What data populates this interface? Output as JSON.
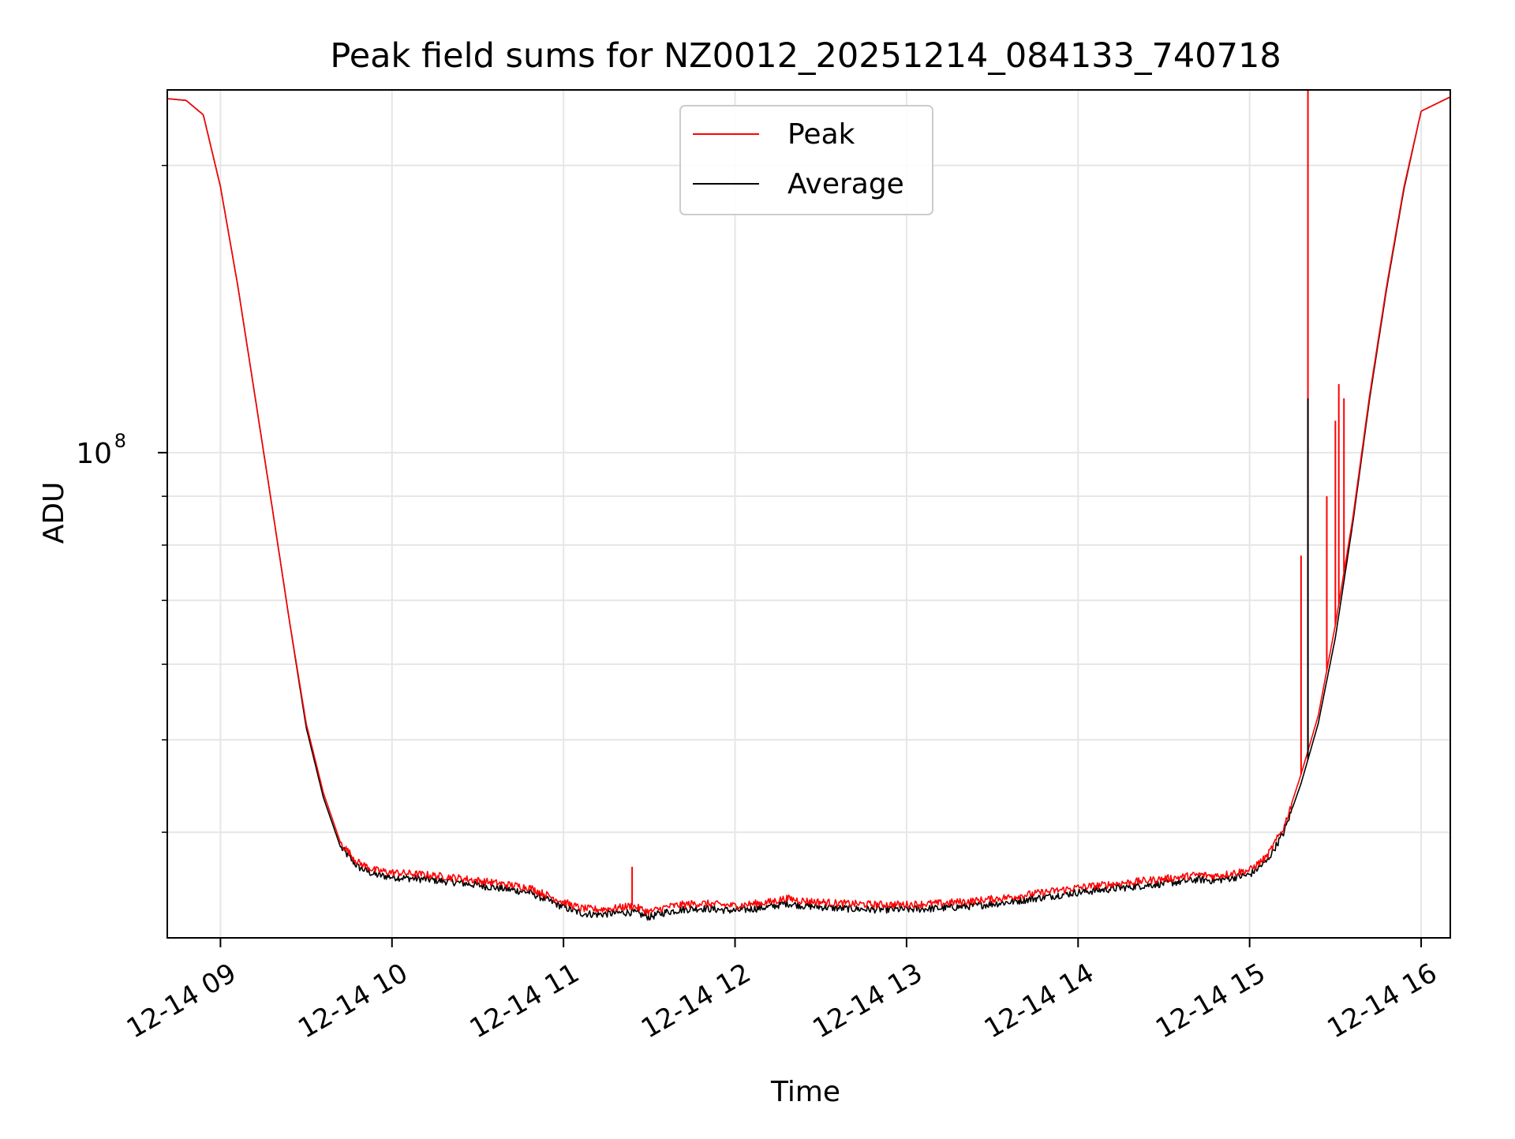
{
  "chart_data": {
    "type": "line",
    "title": "Peak field sums for NZ0012_20251214_084133_740718",
    "xlabel": "Time",
    "ylabel": "ADU",
    "yscale": "log",
    "xlim": [
      8.69,
      16.17
    ],
    "ylim": [
      31000000,
      240000000
    ],
    "grid": true,
    "x_units": "hours (2025-12-14)",
    "xticks": [
      {
        "value": 9,
        "label": "12-14 09"
      },
      {
        "value": 10,
        "label": "12-14 10"
      },
      {
        "value": 11,
        "label": "12-14 11"
      },
      {
        "value": 12,
        "label": "12-14 12"
      },
      {
        "value": 13,
        "label": "12-14 13"
      },
      {
        "value": 14,
        "label": "12-14 14"
      },
      {
        "value": 15,
        "label": "12-14 15"
      },
      {
        "value": 16,
        "label": "12-14 16"
      }
    ],
    "yticks_major": [
      {
        "value": 100000000,
        "label_base": "10",
        "label_exp": "8"
      }
    ],
    "yticks_minor": [
      40000000,
      50000000,
      60000000,
      70000000,
      80000000,
      90000000,
      200000000
    ],
    "legend": {
      "placement": "upper center",
      "entries": [
        "Peak",
        "Average"
      ]
    },
    "series": [
      {
        "name": "Peak",
        "color": "#ff0000",
        "x": [
          8.69,
          8.8,
          8.9,
          9.0,
          9.1,
          9.2,
          9.3,
          9.4,
          9.5,
          9.6,
          9.7,
          9.8,
          9.9,
          10.0,
          10.2,
          10.4,
          10.6,
          10.8,
          11.0,
          11.1,
          11.2,
          11.3,
          11.4,
          11.5,
          11.6,
          11.7,
          11.8,
          12.0,
          12.2,
          12.3,
          12.4,
          12.6,
          12.8,
          13.0,
          13.2,
          13.4,
          13.6,
          13.8,
          14.0,
          14.2,
          14.4,
          14.6,
          14.7,
          14.8,
          15.0,
          15.1,
          15.2,
          15.3,
          15.4,
          15.5,
          15.6,
          15.7,
          15.8,
          15.9,
          16.0,
          16.17
        ],
        "y": [
          235000000,
          234000000,
          226000000,
          190000000,
          150000000,
          115000000,
          88000000,
          67000000,
          52000000,
          44000000,
          39000000,
          37200000,
          36500000,
          36300000,
          36100000,
          35800000,
          35400000,
          35000000,
          33800000,
          33300000,
          33200000,
          33300000,
          33500000,
          33000000,
          33400000,
          33600000,
          33700000,
          33500000,
          33800000,
          34100000,
          33900000,
          33700000,
          33600000,
          33600000,
          33700000,
          33900000,
          34200000,
          34600000,
          35000000,
          35300000,
          35600000,
          35900000,
          36100000,
          36000000,
          36500000,
          37700000,
          40500000,
          46000000,
          53000000,
          66000000,
          85000000,
          115000000,
          150000000,
          190000000,
          228000000,
          236000000
        ]
      },
      {
        "name": "Average",
        "color": "#000000",
        "x": [
          8.69,
          8.8,
          8.9,
          9.0,
          9.1,
          9.2,
          9.3,
          9.4,
          9.5,
          9.6,
          9.7,
          9.8,
          9.9,
          10.0,
          10.2,
          10.4,
          10.6,
          10.8,
          11.0,
          11.1,
          11.2,
          11.3,
          11.4,
          11.5,
          11.6,
          11.7,
          11.8,
          12.0,
          12.2,
          12.3,
          12.4,
          12.6,
          12.8,
          13.0,
          13.2,
          13.4,
          13.6,
          13.8,
          14.0,
          14.2,
          14.4,
          14.6,
          14.7,
          14.8,
          15.0,
          15.1,
          15.2,
          15.3,
          15.4,
          15.5,
          15.6,
          15.7,
          15.8,
          15.9,
          16.0,
          16.17
        ],
        "y": [
          235000000,
          234000000,
          226000000,
          190000000,
          150000000,
          115000000,
          88000000,
          67000000,
          51500000,
          43500000,
          38600000,
          36800000,
          36100000,
          35900000,
          35700000,
          35400000,
          35000000,
          34600000,
          33400000,
          32900000,
          32800000,
          32900000,
          33000000,
          32600000,
          33000000,
          33200000,
          33300000,
          33100000,
          33400000,
          33700000,
          33500000,
          33300000,
          33200000,
          33200000,
          33300000,
          33500000,
          33800000,
          34200000,
          34600000,
          34900000,
          35200000,
          35500000,
          35700000,
          35600000,
          36100000,
          37300000,
          40000000,
          45000000,
          52000000,
          64000000,
          84000000,
          114000000,
          149000000,
          189000000,
          228000000,
          236000000
        ]
      }
    ],
    "spikes": [
      {
        "series": "Peak",
        "x": 11.4,
        "y": 36800000
      },
      {
        "series": "Peak",
        "x": 15.3,
        "y": 78000000
      },
      {
        "series": "Peak",
        "x": 15.34,
        "y": 240000000
      },
      {
        "series": "Average",
        "x": 15.34,
        "y": 114000000
      },
      {
        "series": "Peak",
        "x": 15.45,
        "y": 90000000
      },
      {
        "series": "Peak",
        "x": 15.5,
        "y": 108000000
      },
      {
        "series": "Peak",
        "x": 15.52,
        "y": 118000000
      },
      {
        "series": "Peak",
        "x": 15.55,
        "y": 114000000
      }
    ]
  }
}
